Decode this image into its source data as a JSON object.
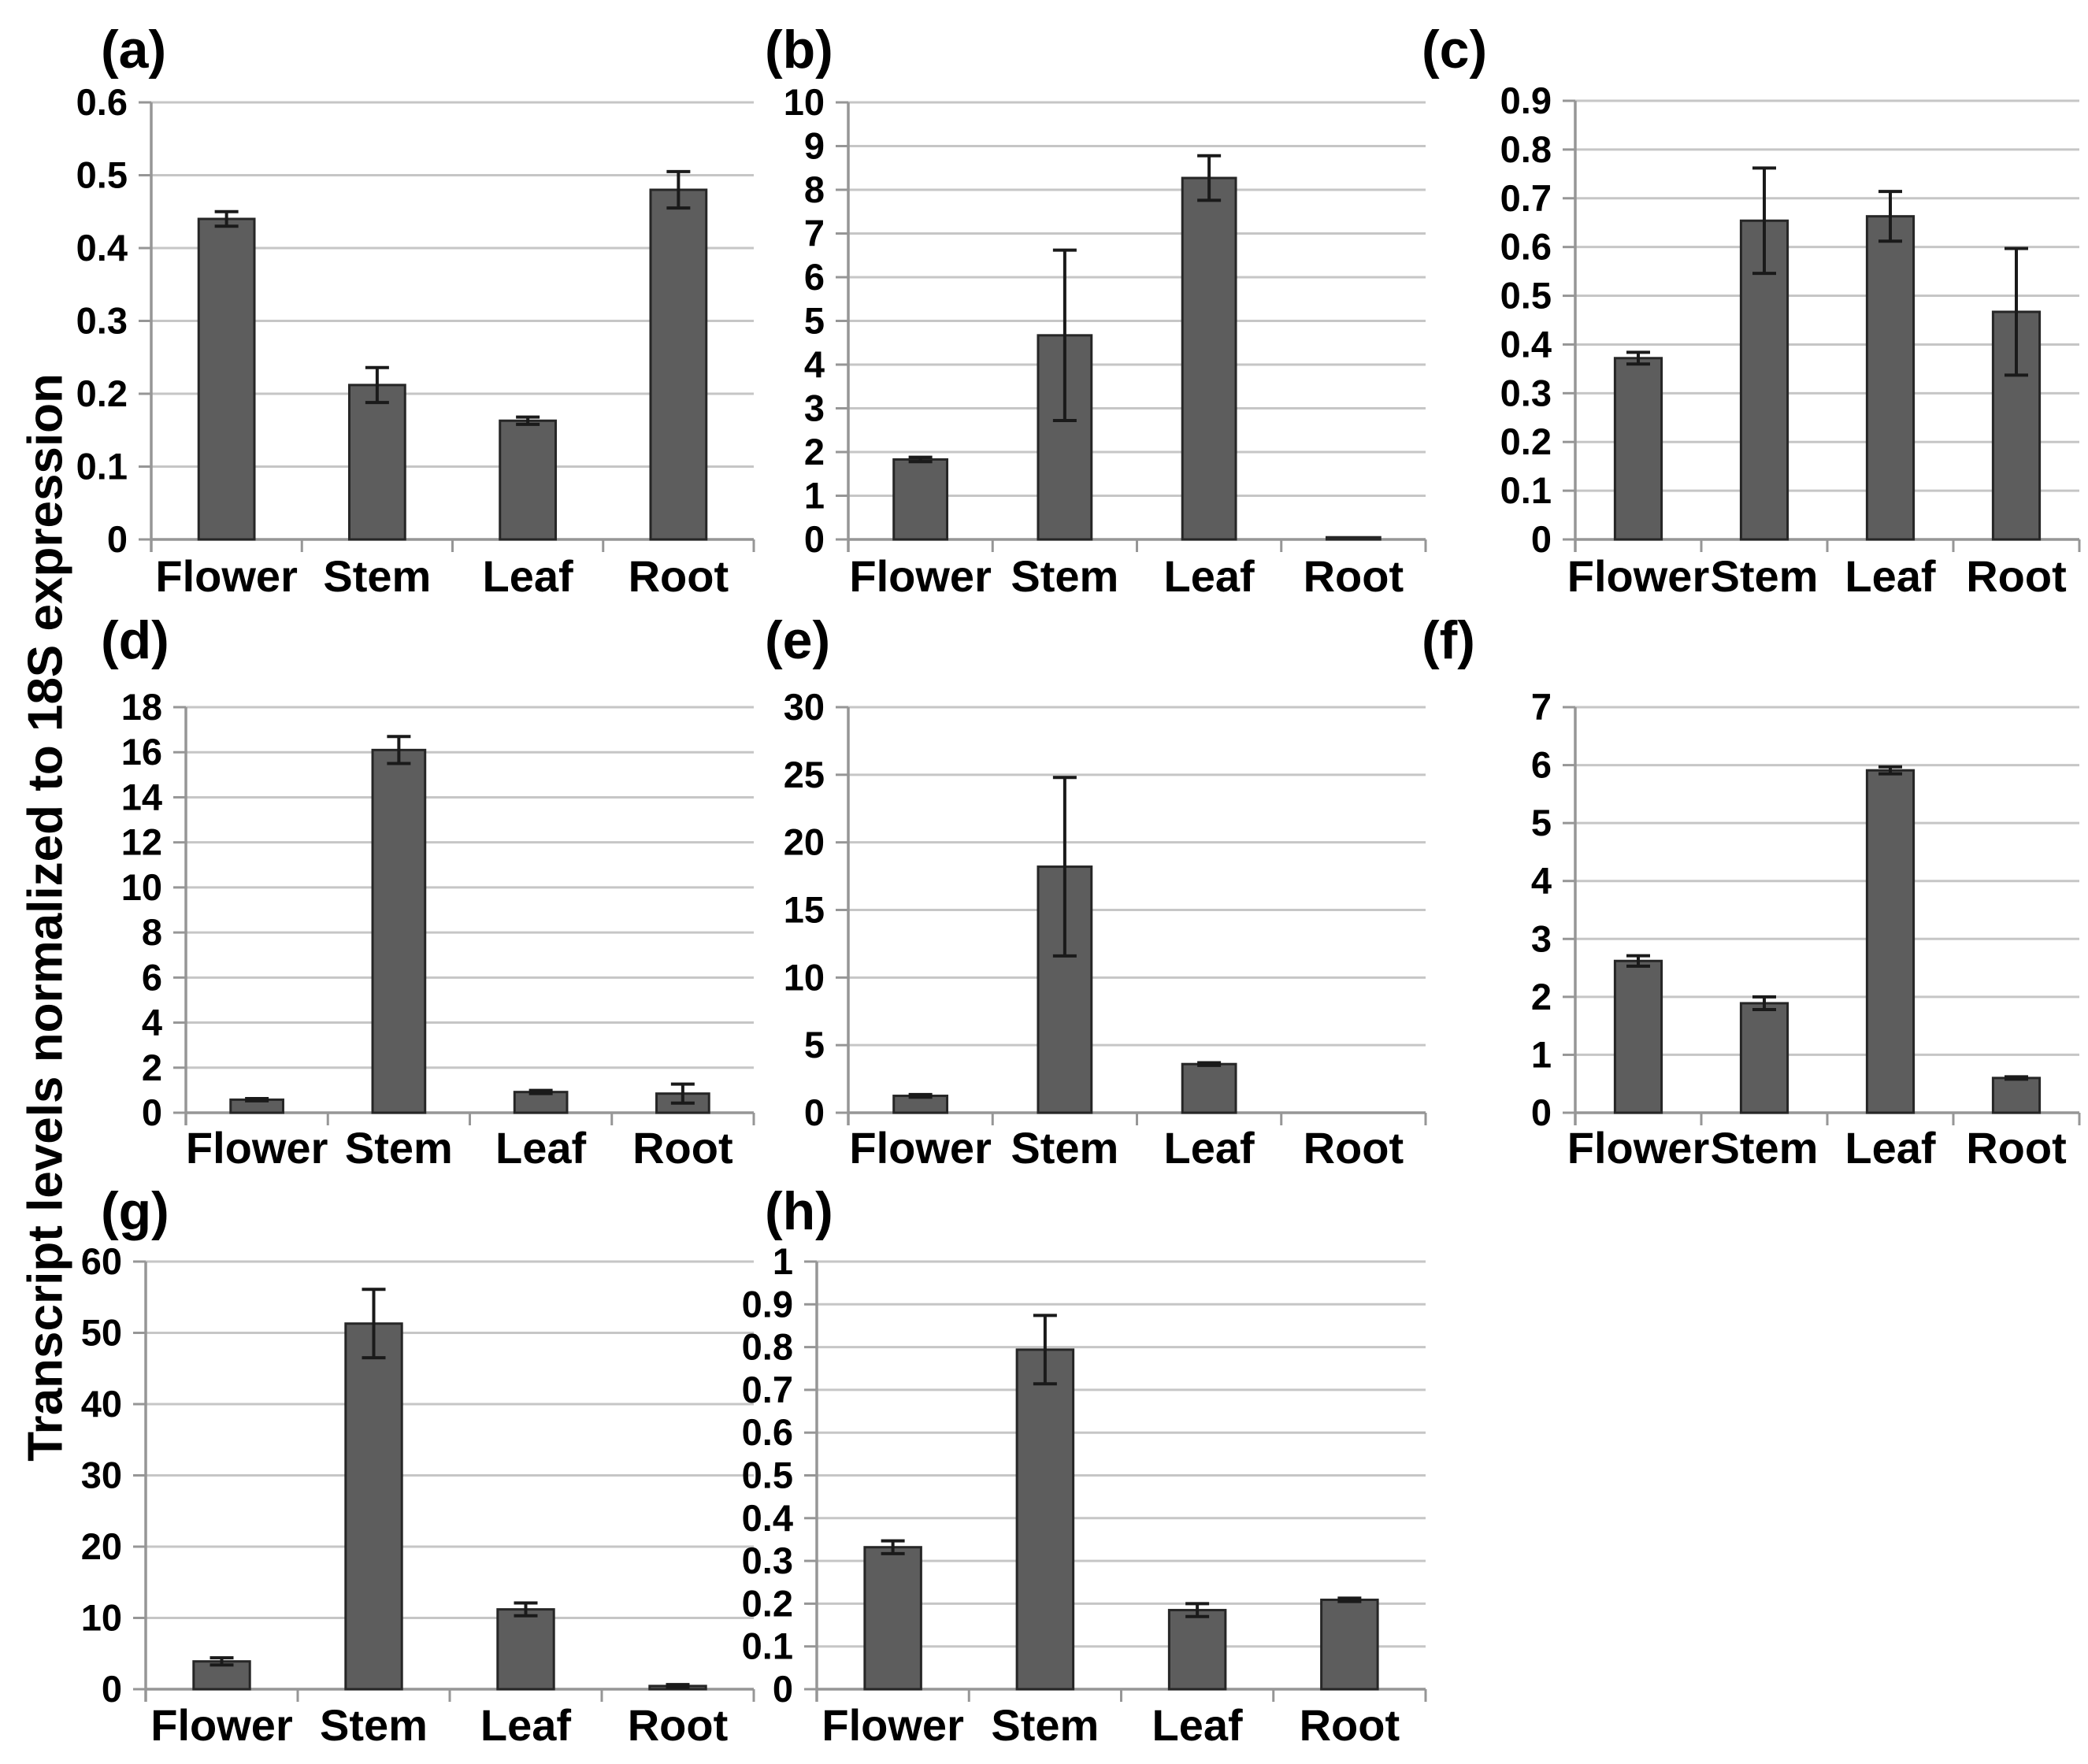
{
  "figure": {
    "y_axis_title": "Transcript levels normalized to 18S expression"
  },
  "colors": {
    "bar_fill": "#5d5d5d",
    "bar_stroke": "#262626",
    "gridline": "#c6c6c6",
    "axis": "#969696",
    "error_bar": "#1a1a1a",
    "text": "#000000",
    "background": "#ffffff"
  },
  "chart_data": [
    {
      "panel": "(a)",
      "type": "bar",
      "categories": [
        "Flower",
        "Stem",
        "Leaf",
        "Root"
      ],
      "values": [
        0.44,
        0.212,
        0.163,
        0.48
      ],
      "errors": [
        0.01,
        0.024,
        0.005,
        0.025
      ],
      "ylim": [
        0,
        0.6
      ],
      "ystep": 0.1,
      "ytick_labels": [
        "0",
        "0.1",
        "0.2",
        "0.3",
        "0.4",
        "0.5",
        "0.6"
      ],
      "xlabel": "",
      "ylabel": "Transcript levels normalized to 18S expression",
      "grid": true,
      "legend": "none"
    },
    {
      "panel": "(b)",
      "type": "bar",
      "categories": [
        "Flower",
        "Stem",
        "Leaf",
        "Root"
      ],
      "values": [
        1.83,
        4.67,
        8.27,
        0.05
      ],
      "errors": [
        0.05,
        1.95,
        0.51,
        0
      ],
      "ylim": [
        0,
        10
      ],
      "ystep": 1,
      "ytick_labels": [
        "0",
        "1",
        "2",
        "3",
        "4",
        "5",
        "6",
        "7",
        "8",
        "9",
        "10"
      ],
      "xlabel": "",
      "ylabel": "Transcript levels normalized to 18S expression",
      "grid": true,
      "legend": "none"
    },
    {
      "panel": "(c)",
      "type": "bar",
      "categories": [
        "Flower",
        "Stem",
        "Leaf",
        "Root"
      ],
      "values": [
        0.372,
        0.654,
        0.663,
        0.467
      ],
      "errors": [
        0.012,
        0.108,
        0.051,
        0.13
      ],
      "ylim": [
        0,
        0.9
      ],
      "ystep": 0.1,
      "ytick_labels": [
        "0",
        "0.1",
        "0.2",
        "0.3",
        "0.4",
        "0.5",
        "0.6",
        "0.7",
        "0.8",
        "0.9"
      ],
      "xlabel": "",
      "ylabel": "Transcript levels normalized to 18S expression",
      "grid": true,
      "legend": "none"
    },
    {
      "panel": "(d)",
      "type": "bar",
      "categories": [
        "Flower",
        "Stem",
        "Leaf",
        "Root"
      ],
      "values": [
        0.58,
        16.1,
        0.92,
        0.85
      ],
      "errors": [
        0.05,
        0.6,
        0.07,
        0.42
      ],
      "ylim": [
        0,
        18
      ],
      "ystep": 2,
      "ytick_labels": [
        "0",
        "2",
        "4",
        "6",
        "8",
        "10",
        "12",
        "14",
        "16",
        "18"
      ],
      "xlabel": "",
      "ylabel": "Transcript levels normalized to 18S expression",
      "grid": true,
      "legend": "none"
    },
    {
      "panel": "(e)",
      "type": "bar",
      "categories": [
        "Flower",
        "Stem",
        "Leaf",
        "Root"
      ],
      "values": [
        1.25,
        18.2,
        3.6,
        0.02
      ],
      "errors": [
        0.1,
        6.6,
        0.1,
        0
      ],
      "ylim": [
        0,
        30
      ],
      "ystep": 5,
      "ytick_labels": [
        "0",
        "5",
        "10",
        "15",
        "20",
        "25",
        "30"
      ],
      "xlabel": "",
      "ylabel": "Transcript levels normalized to 18S expression",
      "grid": true,
      "legend": "none"
    },
    {
      "panel": "(f)",
      "type": "bar",
      "categories": [
        "Flower",
        "Stem",
        "Leaf",
        "Root"
      ],
      "values": [
        2.62,
        1.89,
        5.91,
        0.6
      ],
      "errors": [
        0.09,
        0.11,
        0.06,
        0.02
      ],
      "ylim": [
        0,
        7
      ],
      "ystep": 1,
      "ytick_labels": [
        "0",
        "1",
        "2",
        "3",
        "4",
        "5",
        "6",
        "7"
      ],
      "xlabel": "",
      "ylabel": "Transcript levels normalized to 18S expression",
      "grid": true,
      "legend": "none"
    },
    {
      "panel": "(g)",
      "type": "bar",
      "categories": [
        "Flower",
        "Stem",
        "Leaf",
        "Root"
      ],
      "values": [
        3.9,
        51.3,
        11.2,
        0.45
      ],
      "errors": [
        0.5,
        4.8,
        0.9,
        0.2
      ],
      "ylim": [
        0,
        60
      ],
      "ystep": 10,
      "ytick_labels": [
        "0",
        "10",
        "20",
        "30",
        "40",
        "50",
        "60"
      ],
      "xlabel": "",
      "ylabel": "Transcript levels normalized to 18S expression",
      "grid": true,
      "legend": "none"
    },
    {
      "panel": "(h)",
      "type": "bar",
      "categories": [
        "Flower",
        "Stem",
        "Leaf",
        "Root"
      ],
      "values": [
        0.332,
        0.794,
        0.185,
        0.209
      ],
      "errors": [
        0.015,
        0.08,
        0.015,
        0.004
      ],
      "ylim": [
        0,
        1
      ],
      "ystep": 0.1,
      "ytick_labels": [
        "0",
        "0.1",
        "0.2",
        "0.3",
        "0.4",
        "0.5",
        "0.6",
        "0.7",
        "0.8",
        "0.9",
        "1"
      ],
      "xlabel": "",
      "ylabel": "Transcript levels normalized to 18S expression",
      "grid": true,
      "legend": "none"
    }
  ]
}
